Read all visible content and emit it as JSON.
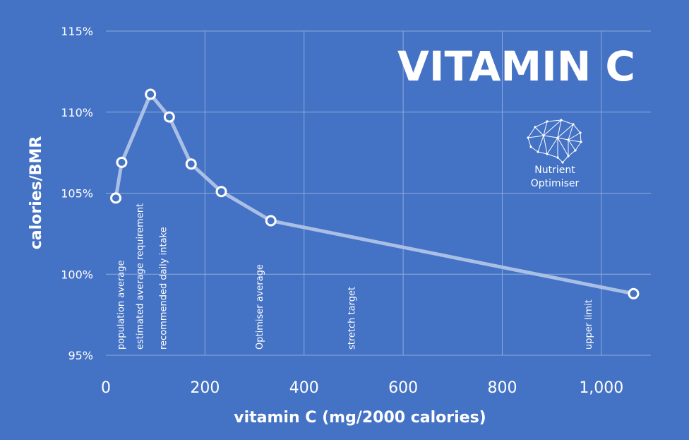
{
  "background_color": "#4472c4",
  "chart_data": {
    "type": "line",
    "title": "VITAMIN C",
    "xlabel": "vitamin C (mg/2000 calories)",
    "ylabel": "calories/BMR",
    "xlim": [
      0,
      1100
    ],
    "ylim": [
      95,
      115
    ],
    "x_ticks": [
      0,
      200,
      400,
      600,
      800,
      1000
    ],
    "x_tick_labels": [
      "0",
      "200",
      "400",
      "600",
      "800",
      "1,000"
    ],
    "y_ticks": [
      95,
      100,
      105,
      110,
      115
    ],
    "y_tick_labels": [
      "95%",
      "100%",
      "105%",
      "110%",
      "115%"
    ],
    "x_gridlines": [
      200,
      400,
      600,
      800,
      1000
    ],
    "grid": true,
    "legend": "none",
    "series": [
      {
        "color": "#a9bfe6",
        "marker_fill": "#4472c4",
        "marker_stroke": "#ffffff",
        "points": [
          {
            "x": 20,
            "y": 104.7
          },
          {
            "x": 32,
            "y": 106.9
          },
          {
            "x": 90,
            "y": 111.1
          },
          {
            "x": 128,
            "y": 109.7
          },
          {
            "x": 172,
            "y": 106.8
          },
          {
            "x": 233,
            "y": 105.1
          },
          {
            "x": 333,
            "y": 103.3
          },
          {
            "x": 1065,
            "y": 98.8
          }
        ]
      }
    ],
    "annotations": [
      {
        "text": "population average",
        "x": 36
      },
      {
        "text": "estimated average requirement",
        "x": 75
      },
      {
        "text": "recommended daily intake",
        "x": 122
      },
      {
        "text": "Optimiser average",
        "x": 316
      },
      {
        "text": "stretch target",
        "x": 502
      },
      {
        "text": "upper limit",
        "x": 980
      }
    ]
  },
  "logo": {
    "line1": "Nutrient",
    "line2": "Optimiser",
    "icon": "brain-network-icon"
  }
}
